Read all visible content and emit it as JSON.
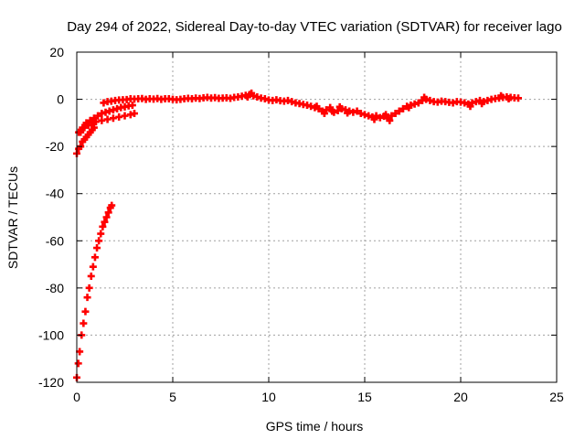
{
  "chart_data": {
    "type": "scatter",
    "title": "Day 294 of 2022, Sidereal Day-to-day VTEC variation (SDTVAR) for receiver lago",
    "xlabel": "GPS time / hours",
    "ylabel": "SDTVAR / TECUs",
    "xlim": [
      0,
      25
    ],
    "ylim": [
      -120,
      20
    ],
    "xticks": [
      0,
      5,
      10,
      15,
      20,
      25
    ],
    "yticks": [
      -120,
      -100,
      -80,
      -60,
      -40,
      -20,
      0,
      20
    ],
    "grid": true,
    "marker": "plus",
    "series_color": "#ff0000",
    "series": [
      {
        "points": [
          [
            0.0,
            -118
          ],
          [
            0.08,
            -112
          ],
          [
            0.15,
            -107
          ],
          [
            0.25,
            -100
          ],
          [
            0.35,
            -95
          ],
          [
            0.45,
            -90
          ],
          [
            0.55,
            -84
          ],
          [
            0.65,
            -80
          ],
          [
            0.75,
            -75
          ],
          [
            0.85,
            -71
          ],
          [
            0.95,
            -67
          ],
          [
            1.05,
            -63
          ],
          [
            1.15,
            -60
          ],
          [
            1.25,
            -57
          ],
          [
            1.35,
            -54
          ],
          [
            1.45,
            -52
          ],
          [
            1.55,
            -50
          ],
          [
            1.65,
            -48
          ],
          [
            1.75,
            -46
          ],
          [
            1.82,
            -45
          ],
          [
            0.0,
            -23
          ],
          [
            0.1,
            -21
          ],
          [
            0.2,
            -20
          ],
          [
            0.3,
            -18
          ],
          [
            0.4,
            -17
          ],
          [
            0.5,
            -16
          ],
          [
            0.6,
            -15
          ],
          [
            0.7,
            -14
          ],
          [
            0.8,
            -13
          ],
          [
            0.9,
            -12
          ],
          [
            0.2,
            -14
          ],
          [
            0.4,
            -12
          ],
          [
            0.6,
            -11
          ],
          [
            0.8,
            -10
          ],
          [
            1.0,
            -9.5
          ],
          [
            1.3,
            -9
          ],
          [
            1.6,
            -8.5
          ],
          [
            1.9,
            -8
          ],
          [
            2.2,
            -7.5
          ],
          [
            2.5,
            -7
          ],
          [
            2.8,
            -6.5
          ],
          [
            3.0,
            -6
          ],
          [
            0.1,
            -14
          ],
          [
            0.3,
            -12
          ],
          [
            0.5,
            -10
          ],
          [
            0.7,
            -9
          ],
          [
            0.9,
            -8
          ],
          [
            1.1,
            -7
          ],
          [
            1.3,
            -6
          ],
          [
            1.5,
            -5.5
          ],
          [
            1.7,
            -5
          ],
          [
            1.9,
            -4.5
          ],
          [
            2.1,
            -4
          ],
          [
            2.3,
            -3.5
          ],
          [
            2.5,
            -3.2
          ],
          [
            2.7,
            -2.8
          ],
          [
            2.9,
            -2.5
          ],
          [
            1.4,
            -1.5
          ],
          [
            1.6,
            -1
          ],
          [
            1.8,
            -0.8
          ],
          [
            2.0,
            -0.5
          ],
          [
            2.2,
            -0.3
          ],
          [
            2.4,
            -0.2
          ],
          [
            2.6,
            -0.1
          ],
          [
            2.8,
            0.2
          ],
          [
            3.0,
            0.1
          ],
          [
            3.2,
            0.2
          ],
          [
            3.4,
            0.3
          ],
          [
            3.6,
            0.0
          ],
          [
            3.8,
            0.2
          ],
          [
            4.0,
            0.1
          ],
          [
            4.2,
            0.3
          ],
          [
            4.4,
            0.0
          ],
          [
            4.6,
            0.2
          ],
          [
            4.8,
            0.2
          ],
          [
            5.0,
            0.0
          ],
          [
            5.2,
            -0.2
          ],
          [
            5.4,
            0.0
          ],
          [
            5.6,
            0.2
          ],
          [
            5.8,
            0.4
          ],
          [
            6.0,
            0.2
          ],
          [
            6.2,
            0.5
          ],
          [
            6.4,
            0.3
          ],
          [
            6.6,
            0.6
          ],
          [
            6.8,
            0.8
          ],
          [
            7.0,
            0.5
          ],
          [
            7.2,
            0.7
          ],
          [
            7.4,
            0.4
          ],
          [
            7.6,
            0.5
          ],
          [
            7.8,
            0.6
          ],
          [
            8.0,
            0.4
          ],
          [
            8.2,
            0.8
          ],
          [
            8.4,
            1.0
          ],
          [
            8.6,
            1.3
          ],
          [
            8.8,
            1.7
          ],
          [
            9.0,
            2.0
          ],
          [
            9.2,
            1.5
          ],
          [
            9.4,
            1.0
          ],
          [
            9.6,
            0.5
          ],
          [
            9.8,
            0.2
          ],
          [
            10.0,
            -0.3
          ],
          [
            10.2,
            -0.5
          ],
          [
            10.4,
            -0.2
          ],
          [
            10.6,
            -0.6
          ],
          [
            10.8,
            -0.8
          ],
          [
            11.0,
            -0.5
          ],
          [
            11.2,
            -1.0
          ],
          [
            11.4,
            -1.5
          ],
          [
            11.6,
            -1.8
          ],
          [
            11.8,
            -2.2
          ],
          [
            12.0,
            -2.5
          ],
          [
            12.2,
            -3.0
          ],
          [
            12.4,
            -3.5
          ],
          [
            12.6,
            -4.0
          ],
          [
            12.8,
            -5.0
          ],
          [
            13.0,
            -4.5
          ],
          [
            13.2,
            -3.5
          ],
          [
            13.4,
            -5.5
          ],
          [
            13.6,
            -4.8
          ],
          [
            13.8,
            -4.0
          ],
          [
            14.0,
            -4.5
          ],
          [
            14.2,
            -5.0
          ],
          [
            14.4,
            -5.5
          ],
          [
            14.6,
            -5.0
          ],
          [
            14.8,
            -6.0
          ],
          [
            15.0,
            -6.5
          ],
          [
            15.2,
            -7.0
          ],
          [
            15.4,
            -7.5
          ],
          [
            15.6,
            -7.0
          ],
          [
            15.8,
            -7.8
          ],
          [
            16.0,
            -7.2
          ],
          [
            16.2,
            -8.0
          ],
          [
            16.4,
            -7.0
          ],
          [
            16.6,
            -6.0
          ],
          [
            16.8,
            -5.0
          ],
          [
            17.0,
            -4.0
          ],
          [
            17.2,
            -3.0
          ],
          [
            17.4,
            -2.5
          ],
          [
            17.6,
            -2.0
          ],
          [
            17.8,
            -1.5
          ],
          [
            18.0,
            -0.5
          ],
          [
            18.2,
            0.0
          ],
          [
            18.4,
            -0.5
          ],
          [
            18.6,
            -1.0
          ],
          [
            18.8,
            -1.2
          ],
          [
            19.0,
            -0.8
          ],
          [
            19.2,
            -1.0
          ],
          [
            19.4,
            -1.3
          ],
          [
            19.6,
            -1.5
          ],
          [
            19.8,
            -1.0
          ],
          [
            20.0,
            -1.2
          ],
          [
            20.2,
            -1.5
          ],
          [
            20.4,
            -2.0
          ],
          [
            20.6,
            -1.5
          ],
          [
            20.8,
            -1.0
          ],
          [
            21.0,
            -0.5
          ],
          [
            21.2,
            -1.0
          ],
          [
            21.4,
            -0.5
          ],
          [
            21.6,
            0.0
          ],
          [
            21.8,
            0.3
          ],
          [
            22.0,
            0.5
          ],
          [
            22.2,
            0.8
          ],
          [
            22.4,
            1.0
          ],
          [
            22.6,
            0.8
          ],
          [
            22.8,
            0.6
          ],
          [
            23.0,
            0.5
          ],
          [
            12.5,
            -3.0
          ],
          [
            12.9,
            -6.0
          ],
          [
            13.3,
            -5.0
          ],
          [
            13.7,
            -3.2
          ],
          [
            14.1,
            -5.8
          ],
          [
            15.5,
            -8.5
          ],
          [
            16.3,
            -9.0
          ],
          [
            16.1,
            -6.5
          ],
          [
            17.3,
            -3.5
          ],
          [
            18.1,
            0.8
          ],
          [
            20.5,
            -3.0
          ],
          [
            21.1,
            -1.8
          ],
          [
            22.1,
            1.5
          ],
          [
            22.5,
            0.2
          ],
          [
            9.1,
            2.6
          ],
          [
            8.9,
            1.0
          ]
        ]
      }
    ]
  }
}
